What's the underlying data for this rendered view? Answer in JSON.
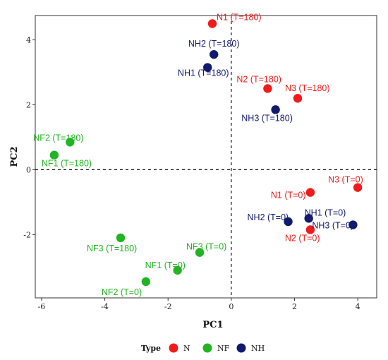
{
  "chart_data": {
    "type": "scatter",
    "title": "",
    "xlabel": "PC1",
    "ylabel": "PC2",
    "xlim": [
      -6.2,
      4.6
    ],
    "ylim": [
      -3.95,
      4.75
    ],
    "xticks": [
      -6,
      -4,
      -2,
      0,
      2,
      4
    ],
    "yticks": [
      -2,
      0,
      2,
      4
    ],
    "reference_lines": {
      "x": 0,
      "y": 0,
      "style": "dashed"
    },
    "grid": false,
    "legend": {
      "title": "Type",
      "position": "bottom",
      "entries": [
        {
          "name": "N",
          "color": "#f01c1c"
        },
        {
          "name": "NF",
          "color": "#22b422"
        },
        {
          "name": "NH",
          "color": "#111a6e"
        }
      ]
    },
    "series": [
      {
        "name": "N",
        "color": "#f01c1c",
        "points": [
          {
            "label": "N1 (T=180)",
            "x": -0.6,
            "y": 4.5
          },
          {
            "label": "N2 (T=180)",
            "x": 1.15,
            "y": 2.5
          },
          {
            "label": "N3 (T=180)",
            "x": 2.1,
            "y": 2.2
          },
          {
            "label": "N1 (T=0)",
            "x": 2.5,
            "y": -0.7
          },
          {
            "label": "N2 (T=0)",
            "x": 2.5,
            "y": -1.85
          },
          {
            "label": "N3 (T=0)",
            "x": 4.0,
            "y": -0.55
          }
        ]
      },
      {
        "name": "NF",
        "color": "#22b422",
        "points": [
          {
            "label": "NF2 (T=180)",
            "x": -5.1,
            "y": 0.85
          },
          {
            "label": "NF1 (T=180)",
            "x": -5.6,
            "y": 0.45
          },
          {
            "label": "NF3 (T=180)",
            "x": -3.5,
            "y": -2.1
          },
          {
            "label": "NF3 (T=0)",
            "x": -1.0,
            "y": -2.55
          },
          {
            "label": "NF1 (T=0)",
            "x": -1.7,
            "y": -3.1
          },
          {
            "label": "NF2 (T=0)",
            "x": -2.7,
            "y": -3.45
          }
        ]
      },
      {
        "name": "NH",
        "color": "#111a6e",
        "points": [
          {
            "label": "NH2 (T=180)",
            "x": -0.55,
            "y": 3.55
          },
          {
            "label": "NH1 (T=180)",
            "x": -0.75,
            "y": 3.15
          },
          {
            "label": "NH3 (T=180)",
            "x": 1.4,
            "y": 1.85
          },
          {
            "label": "NH2 (T=0)",
            "x": 1.8,
            "y": -1.6
          },
          {
            "label": "NH1 (T=0)",
            "x": 2.45,
            "y": -1.5
          },
          {
            "label": "NH3 (T=0)",
            "x": 3.85,
            "y": -1.7
          }
        ]
      }
    ]
  }
}
